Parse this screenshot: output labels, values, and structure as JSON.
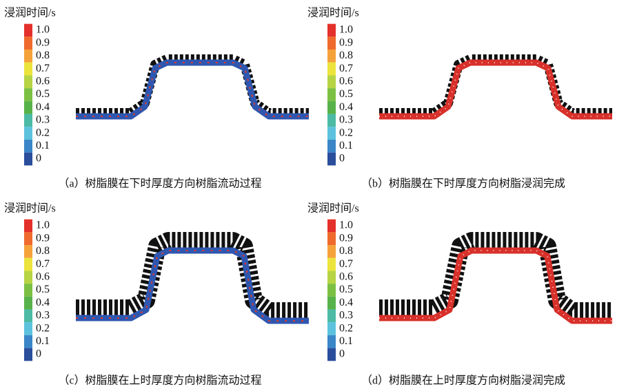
{
  "panels": [
    {
      "colorbar_title": "浸润时间/s",
      "colorbar_labels": [
        "1.0",
        "0.9",
        "0.8",
        "0.7",
        "0.6",
        "0.5",
        "0.4",
        "0.3",
        "0.2",
        "0.1",
        "0"
      ],
      "caption": "（a）树脂膜在下时厚度方向树脂流动过程"
    },
    {
      "colorbar_title": "浸润时间/s",
      "colorbar_labels": [
        "1.0",
        "0.9",
        "0.8",
        "0.7",
        "0.6",
        "0.5",
        "0.4",
        "0.3",
        "0.2",
        "0.1",
        "0"
      ],
      "caption": "（b）树脂膜在下时厚度方向树脂浸润完成"
    },
    {
      "colorbar_title": "浸润时间/s",
      "colorbar_labels": [
        "1.0",
        "0.9",
        "0.8",
        "0.7",
        "0.6",
        "0.5",
        "0.4",
        "0.3",
        "0.2",
        "0.1",
        "0"
      ],
      "caption": "（c）树脂膜在上时厚度方向树脂流动过程"
    },
    {
      "colorbar_title": "浸润时间/s",
      "colorbar_labels": [
        "1.0",
        "0.9",
        "0.8",
        "0.7",
        "0.6",
        "0.5",
        "0.4",
        "0.3",
        "0.2",
        "0.1",
        "0"
      ],
      "caption": "（d）树脂膜在上时厚度方向树脂浸润完成"
    }
  ]
}
